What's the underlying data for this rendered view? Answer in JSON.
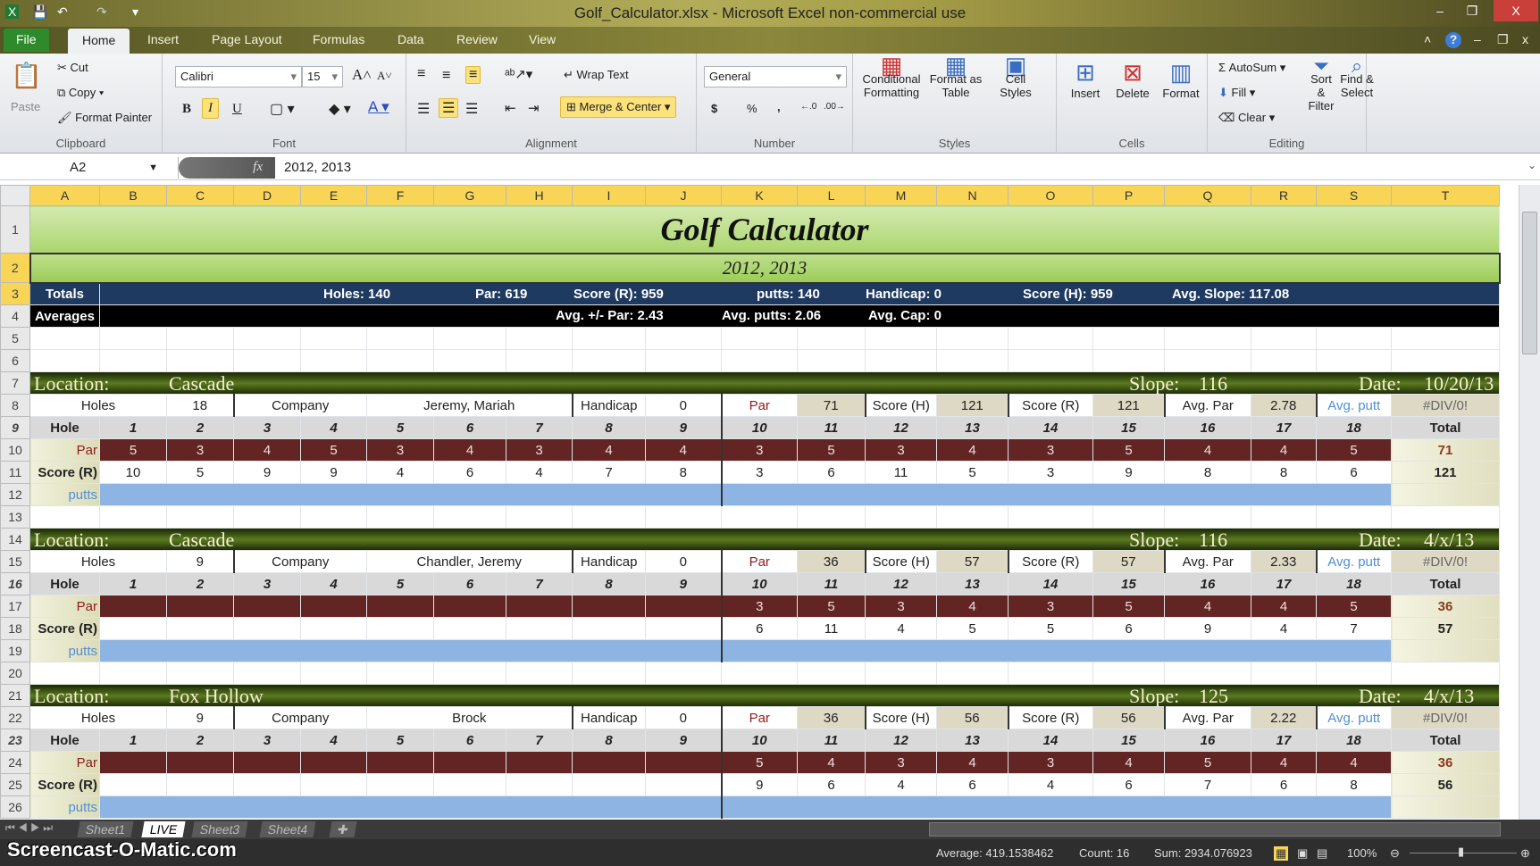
{
  "window": {
    "title": "Golf_Calculator.xlsx - Microsoft Excel non-commercial use",
    "minimize": "–",
    "restore": "❐",
    "close": "X"
  },
  "ribbon_tabs": [
    "File",
    "Home",
    "Insert",
    "Page Layout",
    "Formulas",
    "Data",
    "Review",
    "View"
  ],
  "ribbon": {
    "clipboard": {
      "label": "Clipboard",
      "paste": "Paste",
      "cut": "Cut",
      "copy": "Copy",
      "format_painter": "Format Painter"
    },
    "font": {
      "label": "Font",
      "font_name": "Calibri",
      "font_size": "15",
      "bold": "B",
      "italic": "I",
      "underline": "U"
    },
    "alignment": {
      "label": "Alignment",
      "wrap_text": "Wrap Text",
      "merge_center": "Merge & Center"
    },
    "number": {
      "label": "Number",
      "format": "General",
      "currency": "$",
      "percent": "%",
      "comma": ","
    },
    "styles": {
      "label": "Styles",
      "conditional": "Conditional Formatting",
      "format_table": "Format as Table",
      "cell_styles": "Cell Styles"
    },
    "cells": {
      "label": "Cells",
      "insert": "Insert",
      "delete": "Delete",
      "format": "Format"
    },
    "editing": {
      "label": "Editing",
      "autosum": "AutoSum",
      "fill": "Fill",
      "clear": "Clear",
      "sort": "Sort & Filter",
      "find": "Find & Select"
    }
  },
  "formula_bar": {
    "name_box": "A2",
    "fx": "fx",
    "value": "2012, 2013"
  },
  "columns": [
    "A",
    "B",
    "C",
    "D",
    "E",
    "F",
    "G",
    "H",
    "I",
    "J",
    "K",
    "L",
    "M",
    "N",
    "O",
    "P",
    "Q",
    "R",
    "S",
    "T"
  ],
  "sheet": {
    "title": "Golf Calculator",
    "subtitle": "2012, 2013",
    "totals": {
      "label": "Totals",
      "holes": "Holes: 140",
      "par": "Par: 619",
      "score_r": "Score (R): 959",
      "putts": "putts: 140",
      "handicap": "Handicap: 0",
      "score_h": "Score (H): 959",
      "avg_slope": "Avg. Slope: 117.08"
    },
    "averages": {
      "label": "Averages",
      "avg_par": "Avg. +/- Par: 2.43",
      "avg_putts": "Avg. putts: 2.06",
      "avg_cap": "Avg. Cap: 0"
    },
    "labels": {
      "location": "Location:",
      "slope": "Slope:",
      "date": "Date:",
      "holes": "Holes",
      "company": "Company",
      "handicap": "Handicap",
      "par": "Par",
      "score_h": "Score (H)",
      "score_r": "Score (R)",
      "avg_par": "Avg. Par",
      "avg_putt": "Avg. putt",
      "hole": "Hole",
      "total": "Total",
      "par_row": "Par",
      "score_row": "Score (R)",
      "putts_row": "putts"
    },
    "hole_numbers": [
      "1",
      "2",
      "3",
      "4",
      "5",
      "6",
      "7",
      "8",
      "9",
      "10",
      "11",
      "12",
      "13",
      "14",
      "15",
      "16",
      "17",
      "18"
    ],
    "blocks": [
      {
        "location": "Cascade",
        "slope": "116",
        "date": "10/20/13",
        "holes": "18",
        "company": "Jeremy, Mariah",
        "handicap": "0",
        "par_total": "71",
        "score_h": "121",
        "score_r": "121",
        "avg_par": "2.78",
        "avg_putt": "#DIV/0!",
        "par": [
          "5",
          "3",
          "4",
          "5",
          "3",
          "4",
          "3",
          "4",
          "4",
          "3",
          "5",
          "3",
          "4",
          "3",
          "5",
          "4",
          "4",
          "5"
        ],
        "score": [
          "10",
          "5",
          "9",
          "9",
          "4",
          "6",
          "4",
          "7",
          "8",
          "3",
          "6",
          "11",
          "5",
          "3",
          "9",
          "8",
          "8",
          "6"
        ],
        "total_par": "71",
        "total_score": "121"
      },
      {
        "location": "Cascade",
        "slope": "116",
        "date": "4/x/13",
        "holes": "9",
        "company": "Chandler, Jeremy",
        "handicap": "0",
        "par_total": "36",
        "score_h": "57",
        "score_r": "57",
        "avg_par": "2.33",
        "avg_putt": "#DIV/0!",
        "par": [
          "",
          "",
          "",
          "",
          "",
          "",
          "",
          "",
          "",
          "3",
          "5",
          "3",
          "4",
          "3",
          "5",
          "4",
          "4",
          "5"
        ],
        "score": [
          "",
          "",
          "",
          "",
          "",
          "",
          "",
          "",
          "",
          "6",
          "11",
          "4",
          "5",
          "5",
          "6",
          "9",
          "4",
          "7"
        ],
        "total_par": "36",
        "total_score": "57"
      },
      {
        "location": "Fox Hollow",
        "slope": "125",
        "date": "4/x/13",
        "holes": "9",
        "company": "Brock",
        "handicap": "0",
        "par_total": "36",
        "score_h": "56",
        "score_r": "56",
        "avg_par": "2.22",
        "avg_putt": "#DIV/0!",
        "par": [
          "",
          "",
          "",
          "",
          "",
          "",
          "",
          "",
          "",
          "5",
          "4",
          "3",
          "4",
          "3",
          "4",
          "5",
          "4",
          "4"
        ],
        "score": [
          "",
          "",
          "",
          "",
          "",
          "",
          "",
          "",
          "",
          "9",
          "6",
          "4",
          "6",
          "4",
          "6",
          "7",
          "6",
          "8"
        ],
        "total_par": "36",
        "total_score": "56"
      }
    ]
  },
  "sheet_tabs": [
    "Sheet1",
    "LIVE",
    "Sheet3",
    "Sheet4"
  ],
  "active_sheet": "LIVE",
  "status": {
    "average": "Average: 419.1538462",
    "count": "Count: 16",
    "sum": "Sum: 2934.076923",
    "zoom": "100%"
  },
  "watermark": "Screencast-O-Matic.com",
  "colors": {
    "totals_bar": "#1f3a60",
    "par_row": "#632523",
    "putts_row": "#8db4e2",
    "title_green": "#aad56c",
    "location_bar": "#3c5210"
  }
}
